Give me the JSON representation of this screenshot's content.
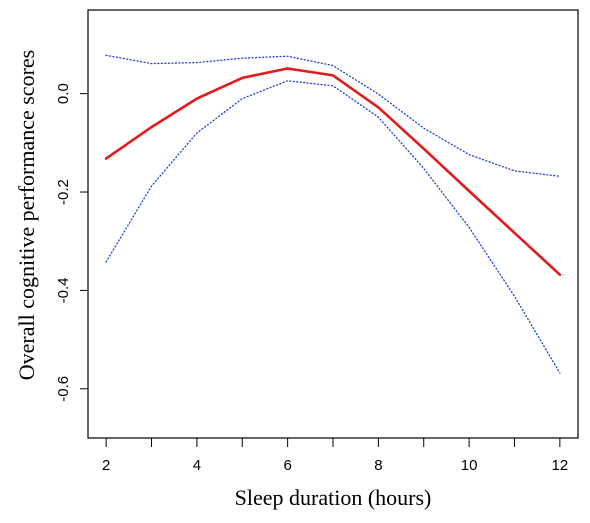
{
  "chart_data": {
    "type": "line",
    "title": "",
    "xlabel": "Sleep duration (hours)",
    "ylabel": "Overall cognitive performance scores",
    "xlim": [
      1.6,
      12.4
    ],
    "ylim": [
      -0.7,
      0.17
    ],
    "xticks": [
      2,
      3,
      4,
      5,
      6,
      7,
      8,
      9,
      10,
      11,
      12
    ],
    "xtick_labels": [
      "2",
      "",
      "4",
      "",
      "6",
      "",
      "8",
      "",
      "10",
      "",
      "12"
    ],
    "yticks": [
      0.0,
      -0.2,
      -0.4,
      -0.6
    ],
    "ytick_labels": [
      "0.0",
      "-0.2",
      "-0.4",
      "-0.6"
    ],
    "grid": false,
    "series": [
      {
        "role": "estimate",
        "color": "#e31a1c",
        "style": "solid",
        "x": [
          2,
          3,
          4,
          5,
          6,
          7,
          8,
          9,
          10,
          11,
          12
        ],
        "y": [
          -0.132,
          -0.068,
          -0.01,
          0.032,
          0.051,
          0.037,
          -0.028,
          -0.112,
          -0.198,
          -0.283,
          -0.368
        ]
      },
      {
        "role": "upper-bound",
        "color": "#1f3fd6",
        "style": "dotted",
        "x": [
          2,
          3,
          4,
          5,
          6,
          7,
          8,
          9,
          10,
          11,
          12
        ],
        "y": [
          0.078,
          0.061,
          0.063,
          0.072,
          0.076,
          0.057,
          -0.001,
          -0.07,
          -0.124,
          -0.157,
          -0.168
        ]
      },
      {
        "role": "lower-bound",
        "color": "#1f3fd6",
        "style": "dotted",
        "x": [
          2,
          3,
          4,
          5,
          6,
          7,
          8,
          9,
          10,
          11,
          12
        ],
        "y": [
          -0.342,
          -0.188,
          -0.08,
          -0.01,
          0.026,
          0.016,
          -0.048,
          -0.152,
          -0.272,
          -0.412,
          -0.568
        ]
      }
    ]
  }
}
